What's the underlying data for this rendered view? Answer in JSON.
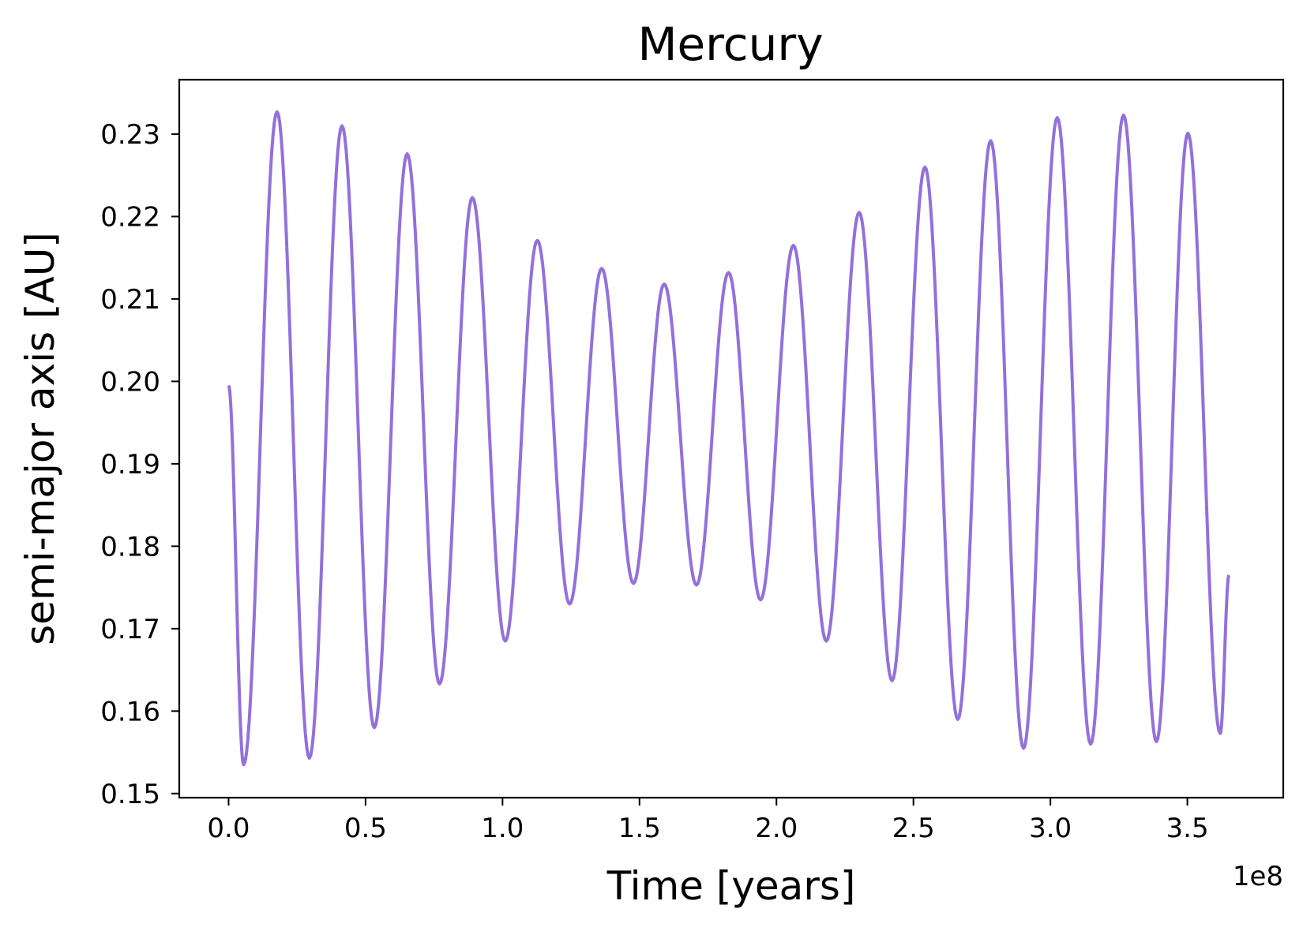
{
  "chart_data": {
    "type": "line",
    "title": "Mercury",
    "xlabel": "Time [years]",
    "ylabel": "semi-major axis [AU]",
    "x_offset_label": "1e8",
    "x_scale": 100000000,
    "xlim": [
      -0.18,
      3.85
    ],
    "ylim": [
      0.1495,
      0.2366
    ],
    "x_ticks": [
      0.0,
      0.5,
      1.0,
      1.5,
      2.0,
      2.5,
      3.0,
      3.5
    ],
    "x_tick_labels": [
      "0.0",
      "0.5",
      "1.0",
      "1.5",
      "2.0",
      "2.5",
      "3.0",
      "3.5"
    ],
    "y_ticks": [
      0.15,
      0.16,
      0.17,
      0.18,
      0.19,
      0.2,
      0.21,
      0.22,
      0.23
    ],
    "y_tick_labels": [
      "0.15",
      "0.16",
      "0.17",
      "0.18",
      "0.19",
      "0.20",
      "0.21",
      "0.22",
      "0.23"
    ],
    "grid": false,
    "legend": "none",
    "series": [
      {
        "color": "#9370DB",
        "points": [
          [
            0.0,
            0.1995
          ],
          [
            0.055,
            0.1535
          ],
          [
            0.177,
            0.2327
          ],
          [
            0.295,
            0.1543
          ],
          [
            0.414,
            0.231
          ],
          [
            0.532,
            0.158
          ],
          [
            0.652,
            0.2276
          ],
          [
            0.77,
            0.1633
          ],
          [
            0.89,
            0.2223
          ],
          [
            1.01,
            0.1685
          ],
          [
            1.127,
            0.2171
          ],
          [
            1.245,
            0.173
          ],
          [
            1.362,
            0.2137
          ],
          [
            1.478,
            0.1755
          ],
          [
            1.59,
            0.2118
          ],
          [
            1.708,
            0.1753
          ],
          [
            1.825,
            0.2132
          ],
          [
            1.942,
            0.1735
          ],
          [
            2.062,
            0.2165
          ],
          [
            2.182,
            0.1685
          ],
          [
            2.302,
            0.2205
          ],
          [
            2.422,
            0.1637
          ],
          [
            2.542,
            0.226
          ],
          [
            2.662,
            0.159
          ],
          [
            2.782,
            0.2292
          ],
          [
            2.902,
            0.1555
          ],
          [
            3.025,
            0.232
          ],
          [
            3.147,
            0.156
          ],
          [
            3.267,
            0.2323
          ],
          [
            3.387,
            0.1563
          ],
          [
            3.502,
            0.2301
          ],
          [
            3.62,
            0.1573
          ],
          [
            3.652,
            0.1765
          ]
        ]
      }
    ]
  }
}
